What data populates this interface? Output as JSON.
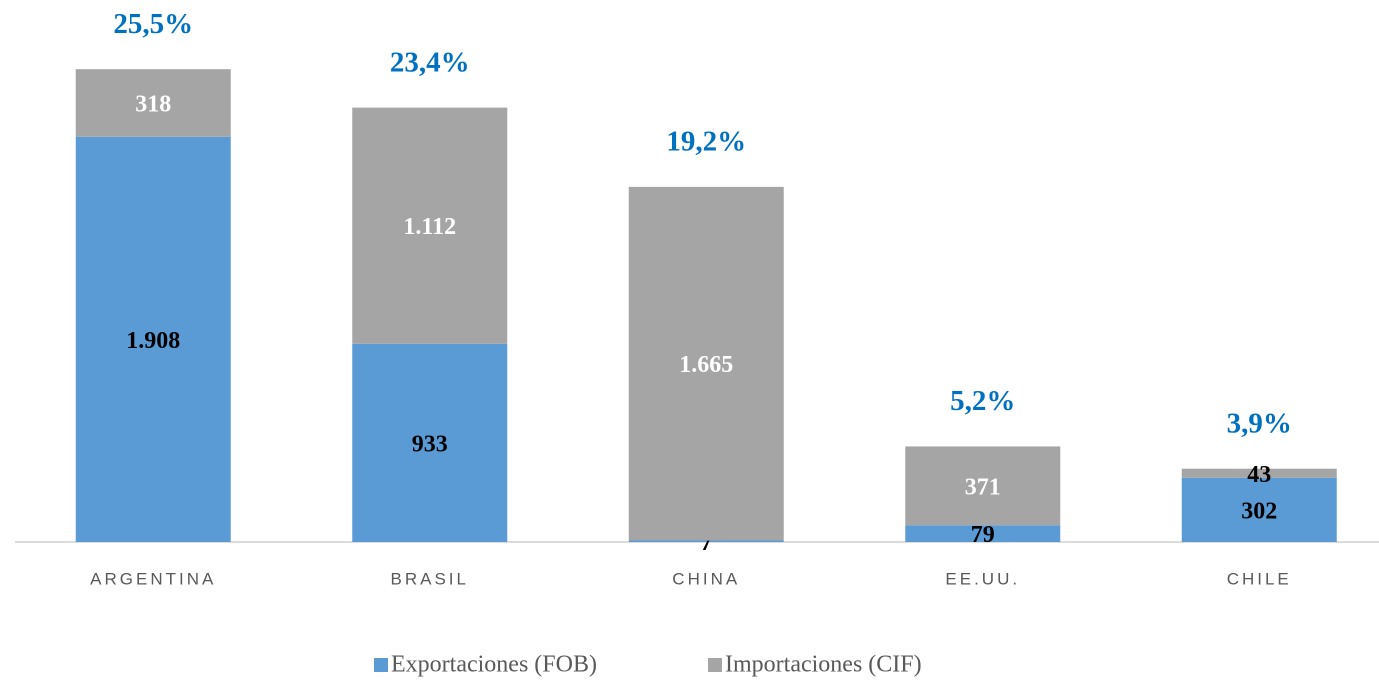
{
  "chart_data": {
    "type": "stacked_bar",
    "categories": [
      "ARGENTINA",
      "BRASIL",
      "CHINA",
      "EE.UU.",
      "CHILE"
    ],
    "series": [
      {
        "name": "Exportaciones (FOB)",
        "color": "#5b9bd5",
        "values": [
          1908,
          933,
          7,
          79,
          302
        ],
        "value_labels": [
          "1.908",
          "933",
          "7",
          "79",
          "302"
        ]
      },
      {
        "name": "Importaciones (CIF)",
        "color": "#a5a5a5",
        "values": [
          318,
          1112,
          1665,
          371,
          43
        ],
        "value_labels": [
          "318",
          "1.112",
          "1.665",
          "371",
          "43"
        ]
      }
    ],
    "shares": [
      25.5,
      23.4,
      19.2,
      5.2,
      3.9
    ],
    "share_labels": [
      "25,5%",
      "23,4%",
      "19,2%",
      "5,2%",
      "3,9%"
    ],
    "ylim": [
      0,
      2500
    ]
  }
}
